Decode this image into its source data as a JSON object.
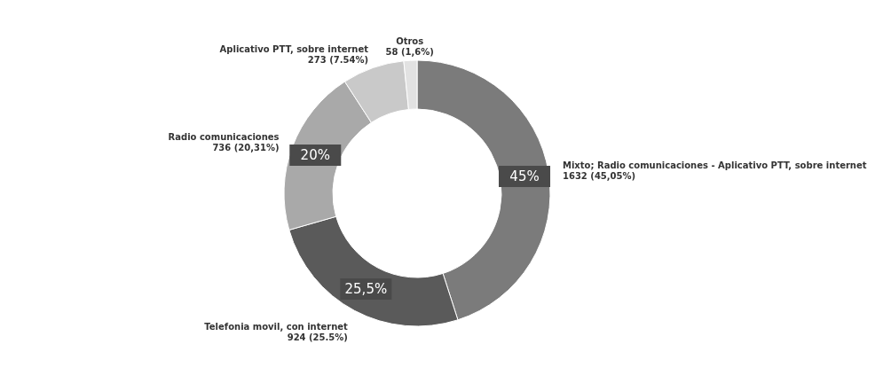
{
  "chart_data": {
    "type": "donut",
    "categories": [
      "Mixto; Radio comunicaciones - Aplicativo PTT, sobre internet",
      "Telefonia movil, con internet",
      "Radio comunicaciones",
      "Aplicativo PTT, sobre internet",
      "Otros"
    ],
    "values": [
      1632,
      924,
      736,
      273,
      58
    ],
    "colors": [
      "#7b7b7b",
      "#5a5a5a",
      "#a9a9a9",
      "#c9c9c9",
      "#e2e2e2"
    ],
    "value_labels": [
      "1632 (45,05%)",
      "924 (25.5%)",
      "736 (20,31%)",
      "273 (7.54%)",
      "58 (1,6%)"
    ],
    "annotations": [
      {
        "text": "45%",
        "x": "Mixto; Radio comunicaciones - Aplicativo PTT, sobre internet"
      },
      {
        "text": "25,5%",
        "x": "Telefonia movil, con internet"
      },
      {
        "text": "20%",
        "x": "Radio comunicaciones"
      }
    ],
    "legend": false
  }
}
